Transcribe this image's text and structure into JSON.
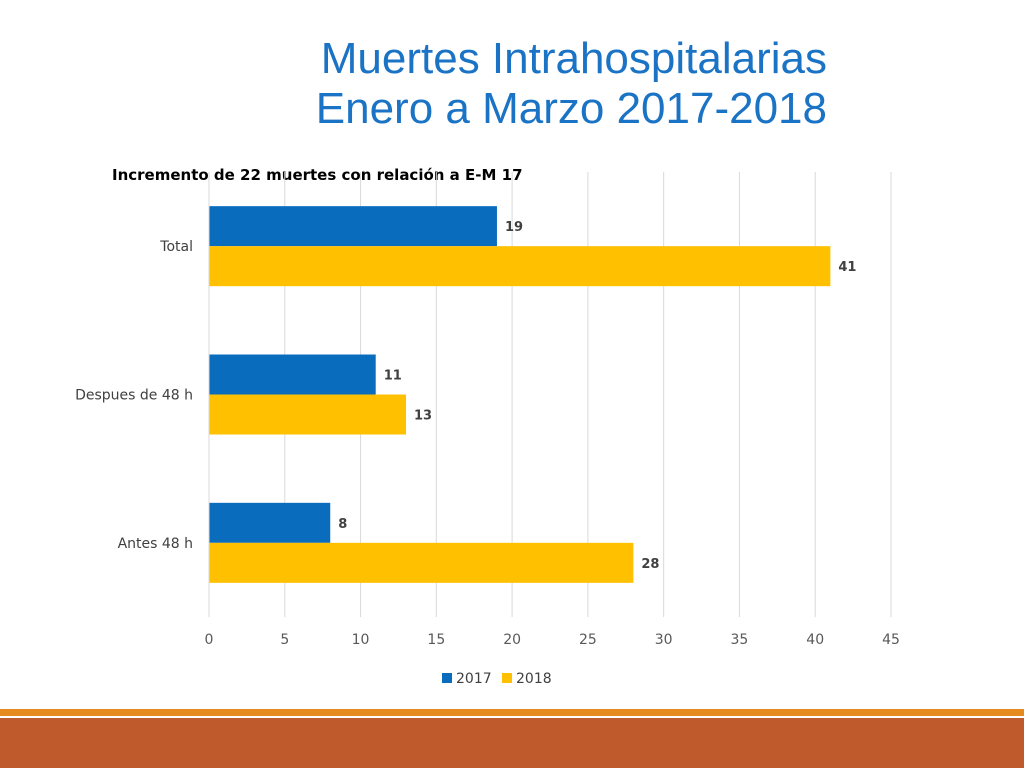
{
  "slide": {
    "title_line1": "Muertes Intrahospitalarias",
    "title_line2": "Enero a Marzo 2017-2018"
  },
  "chart_data": {
    "type": "bar",
    "orientation": "horizontal",
    "title": "Incremento de 22 muertes con relación a E-M 17",
    "categories": [
      "Total",
      "Despues de 48 h",
      "Antes 48 h"
    ],
    "series": [
      {
        "name": "2017",
        "color": "#0a6cbd",
        "values": [
          19,
          11,
          8
        ]
      },
      {
        "name": "2018",
        "color": "#ffc000",
        "values": [
          41,
          13,
          28
        ]
      }
    ],
    "xlim": [
      0,
      45
    ],
    "x_ticks": [
      0,
      5,
      10,
      15,
      20,
      25,
      30,
      35,
      40,
      45
    ],
    "grid": true,
    "legend_position": "bottom",
    "data_labels": true
  }
}
